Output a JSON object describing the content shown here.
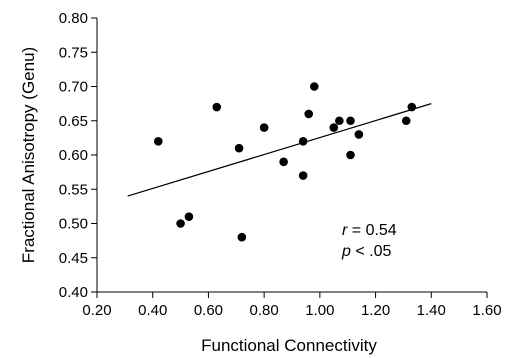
{
  "chart_data": {
    "type": "scatter",
    "title": "",
    "xlabel": "Functional Connectivity",
    "ylabel": "Fractional Anisotropy (Genu)",
    "xlim": [
      0.2,
      1.6
    ],
    "ylim": [
      0.4,
      0.8
    ],
    "xticks": [
      "0.20",
      "0.40",
      "0.60",
      "0.80",
      "1.00",
      "1.20",
      "1.40",
      "1.60"
    ],
    "yticks": [
      "0.40",
      "0.45",
      "0.50",
      "0.55",
      "0.60",
      "0.65",
      "0.70",
      "0.75",
      "0.80"
    ],
    "grid": false,
    "points": [
      {
        "x": 0.42,
        "y": 0.62
      },
      {
        "x": 0.5,
        "y": 0.5
      },
      {
        "x": 0.53,
        "y": 0.51
      },
      {
        "x": 0.63,
        "y": 0.67
      },
      {
        "x": 0.71,
        "y": 0.61
      },
      {
        "x": 0.72,
        "y": 0.48
      },
      {
        "x": 0.8,
        "y": 0.64
      },
      {
        "x": 0.87,
        "y": 0.59
      },
      {
        "x": 0.94,
        "y": 0.62
      },
      {
        "x": 0.94,
        "y": 0.57
      },
      {
        "x": 0.96,
        "y": 0.66
      },
      {
        "x": 0.98,
        "y": 0.7
      },
      {
        "x": 1.05,
        "y": 0.64
      },
      {
        "x": 1.07,
        "y": 0.65
      },
      {
        "x": 1.11,
        "y": 0.65
      },
      {
        "x": 1.11,
        "y": 0.6
      },
      {
        "x": 1.14,
        "y": 0.63
      },
      {
        "x": 1.31,
        "y": 0.65
      },
      {
        "x": 1.33,
        "y": 0.67
      }
    ],
    "fit_line": {
      "x": [
        0.31,
        1.4
      ],
      "y": [
        0.54,
        0.675
      ]
    },
    "annotations": {
      "r_symbol": "r",
      "r_rest": " = 0.54",
      "p_symbol": "p",
      "p_rest": " < .05"
    },
    "colors": {
      "points": "#000000",
      "line": "#000000",
      "axes": "#000000"
    }
  }
}
